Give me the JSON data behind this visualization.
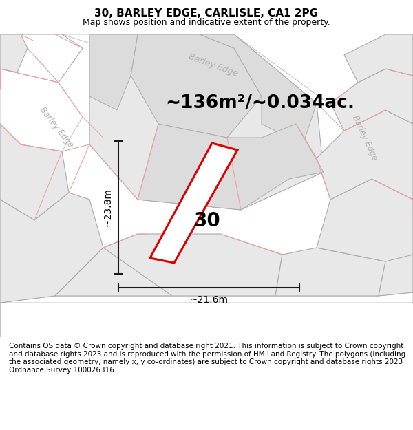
{
  "title": "30, BARLEY EDGE, CARLISLE, CA1 2PG",
  "subtitle": "Map shows position and indicative extent of the property.",
  "footer": "Contains OS data © Crown copyright and database right 2021. This information is subject to Crown copyright and database rights 2023 and is reproduced with the permission of HM Land Registry. The polygons (including the associated geometry, namely x, y co-ordinates) are subject to Crown copyright and database rights 2023 Ordnance Survey 100026316.",
  "area_text": "~136m²/~0.034ac.",
  "width_label": "~21.6m",
  "height_label": "~23.8m",
  "property_number": "30",
  "map_bg": "#ffffff",
  "parcel_fill": "#e8e8e8",
  "parcel_stroke": "#aaaaaa",
  "road_pink": "#f0a0a0",
  "highlight_stroke": "#dd0000",
  "highlight_fill": "#ffffff",
  "dim_line_color": "#1a1a1a",
  "road_label_color": "#b0b0b0",
  "title_fontsize": 11,
  "subtitle_fontsize": 9,
  "area_fontsize": 19,
  "number_fontsize": 20,
  "dim_fontsize": 10,
  "footer_fontsize": 7.5
}
